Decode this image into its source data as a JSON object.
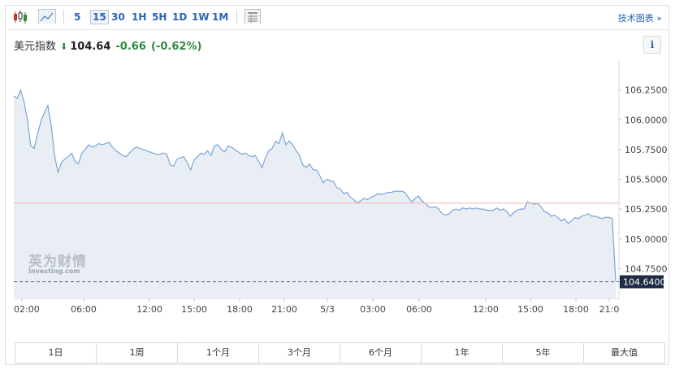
{
  "toolbar": {
    "icons": [
      "candlestick-icon",
      "line-chart-icon",
      "table-icon"
    ],
    "intervals": [
      "5",
      "15",
      "30",
      "1H",
      "5H",
      "1D",
      "1W",
      "1M"
    ],
    "active_interval": "15",
    "tech_chart_label": "技术图表 »"
  },
  "quote": {
    "name": "美元指数",
    "direction": "down",
    "price": "104.64",
    "change": "-0.66",
    "change_pct": "(-0.62%)",
    "info_label": "i"
  },
  "watermark": {
    "cn": "英为财情",
    "en": "Investing.com"
  },
  "colors": {
    "line": "#7aa5d6",
    "area": "#e9eef5",
    "reference_line": "#f0b2b2",
    "price_line": "#4a5a73",
    "price_box": "#1d2b45",
    "accent": "#2a63b5",
    "down": "#2e8b3a"
  },
  "chart_data": {
    "type": "area",
    "y_ticks": [
      "106.2500",
      "106.0000",
      "105.7500",
      "105.5000",
      "105.2500",
      "105.0000",
      "104.7500"
    ],
    "y_tick_values": [
      106.25,
      106.0,
      105.75,
      105.5,
      105.25,
      105.0,
      104.75
    ],
    "ylim": [
      104.5,
      106.5
    ],
    "x_ticks": [
      "02:00",
      "06:00",
      "12:00",
      "15:00",
      "18:00",
      "21:00",
      "5/3",
      "03:00",
      "06:00",
      "12:00",
      "15:00",
      "18:00",
      "21:0"
    ],
    "reference_value": 105.3,
    "last_value": 104.64,
    "last_label": "104.6400",
    "series": [
      {
        "values": [
          106.2,
          106.18,
          106.25,
          106.15,
          106.0,
          105.78,
          105.76,
          105.88,
          105.99,
          106.06,
          106.12,
          105.95,
          105.7,
          105.56,
          105.64,
          105.67,
          105.69,
          105.72,
          105.65,
          105.63,
          105.72,
          105.75,
          105.79,
          105.77,
          105.78,
          105.8,
          105.79,
          105.8,
          105.81,
          105.77,
          105.74,
          105.72,
          105.7,
          105.69,
          105.72,
          105.75,
          105.77,
          105.76,
          105.75,
          105.74,
          105.73,
          105.72,
          105.71,
          105.71,
          105.72,
          105.71,
          105.62,
          105.61,
          105.67,
          105.68,
          105.69,
          105.64,
          105.58,
          105.66,
          105.69,
          105.72,
          105.71,
          105.74,
          105.7,
          105.78,
          105.79,
          105.75,
          105.73,
          105.78,
          105.77,
          105.75,
          105.73,
          105.71,
          105.72,
          105.7,
          105.69,
          105.7,
          105.65,
          105.6,
          105.68,
          105.74,
          105.76,
          105.82,
          105.8,
          105.89,
          105.79,
          105.82,
          105.79,
          105.74,
          105.7,
          105.62,
          105.6,
          105.63,
          105.58,
          105.58,
          105.53,
          105.47,
          105.5,
          105.49,
          105.48,
          105.43,
          105.42,
          105.38,
          105.39,
          105.35,
          105.33,
          105.3,
          105.32,
          105.34,
          105.33,
          105.35,
          105.36,
          105.38,
          105.37,
          105.38,
          105.39,
          105.39,
          105.4,
          105.4,
          105.4,
          105.39,
          105.35,
          105.31,
          105.34,
          105.36,
          105.32,
          105.3,
          105.27,
          105.26,
          105.27,
          105.25,
          105.21,
          105.2,
          105.21,
          105.24,
          105.25,
          105.24,
          105.26,
          105.25,
          105.26,
          105.25,
          105.26,
          105.25,
          105.25,
          105.24,
          105.24,
          105.24,
          105.26,
          105.24,
          105.25,
          105.23,
          105.19,
          105.22,
          105.24,
          105.25,
          105.25,
          105.31,
          105.3,
          105.29,
          105.3,
          105.27,
          105.23,
          105.22,
          105.19,
          105.2,
          105.18,
          105.15,
          105.17,
          105.13,
          105.15,
          105.18,
          105.17,
          105.19,
          105.2,
          105.21,
          105.19,
          105.19,
          105.18,
          105.17,
          105.18,
          105.18,
          105.17,
          104.64
        ]
      }
    ]
  },
  "periods": [
    "1日",
    "1周",
    "1个月",
    "3个月",
    "6个月",
    "1年",
    "5年",
    "最大值"
  ]
}
